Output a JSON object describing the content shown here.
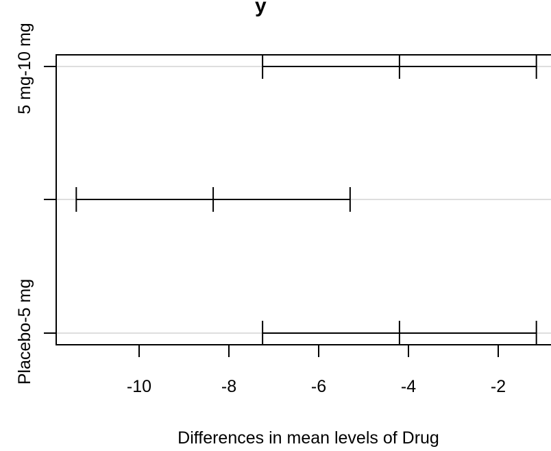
{
  "chart_data": {
    "type": "interval",
    "title_fragment": "y",
    "xlabel": "Differences in mean levels of Drug",
    "x_ticks": [
      -10,
      -8,
      -6,
      -4,
      -2
    ],
    "x_tick_labels": [
      "-10",
      "-8",
      "-6",
      "-4",
      "-2"
    ],
    "xlim": [
      -11.8,
      -1.1
    ],
    "comparisons": [
      {
        "label": "5 mg-10 mg",
        "lower": -7.25,
        "estimate": -4.2,
        "upper": -1.15,
        "label_shown": true
      },
      {
        "label": "",
        "lower": -11.4,
        "estimate": -8.35,
        "upper": -5.3,
        "label_shown": false
      },
      {
        "label": "Placebo-5 mg",
        "lower": -7.25,
        "estimate": -4.2,
        "upper": -1.15,
        "label_shown": true
      }
    ],
    "gridlines": true,
    "colors": {
      "interval": "#000000",
      "gridline": "#d3d3d3",
      "frame": "#000000"
    }
  }
}
